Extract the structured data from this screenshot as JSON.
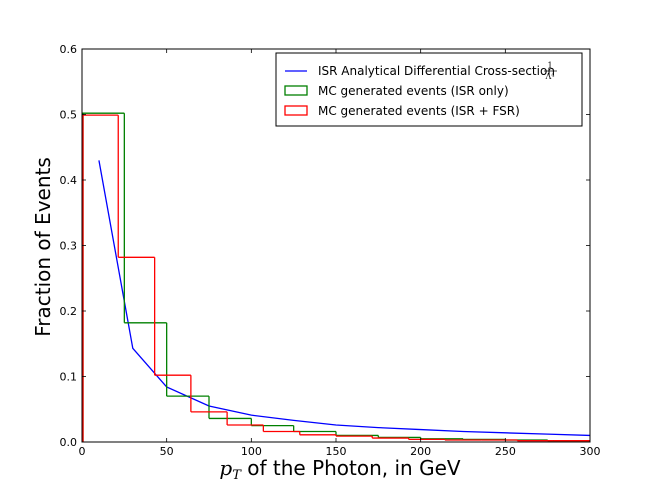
{
  "chart_data": {
    "type": "line",
    "title": "",
    "xlabel_math": "p",
    "xlabel_math_sub": "T",
    "xlabel_rest": " of the Photon, in GeV",
    "ylabel": "Fraction of Events",
    "xlim": [
      0,
      300
    ],
    "ylim": [
      0,
      0.6
    ],
    "xticks": [
      0,
      50,
      100,
      150,
      200,
      250,
      300
    ],
    "yticks": [
      0.0,
      0.1,
      0.2,
      0.3,
      0.4,
      0.5,
      0.6
    ],
    "xtick_labels": [
      "0",
      "50",
      "100",
      "150",
      "200",
      "250",
      "300"
    ],
    "ytick_labels": [
      "0.0",
      "0.1",
      "0.2",
      "0.3",
      "0.4",
      "0.5",
      "0.6"
    ],
    "grid": false,
    "legend_position": "top-right",
    "series": [
      {
        "name": "ISR Analytical Differential Cross-section",
        "legend_formula_num": "1",
        "legend_formula_den": "Λ⁴",
        "kind": "curve",
        "color": "#0000ff",
        "x": [
          10,
          30,
          50,
          75,
          100,
          125,
          150,
          175,
          200,
          225,
          250,
          275,
          300
        ],
        "y": [
          0.43,
          0.143,
          0.084,
          0.055,
          0.041,
          0.033,
          0.026,
          0.022,
          0.019,
          0.016,
          0.014,
          0.012,
          0.01
        ]
      },
      {
        "name": "MC generated events (ISR only)",
        "kind": "step",
        "color": "#008000",
        "bin_edges": [
          0,
          25,
          50,
          75,
          100,
          125,
          150,
          175,
          200,
          225,
          250,
          275,
          300
        ],
        "values": [
          0.502,
          0.182,
          0.07,
          0.036,
          0.025,
          0.016,
          0.01,
          0.007,
          0.005,
          0.004,
          0.003,
          0.002
        ]
      },
      {
        "name": "MC generated events (ISR + FSR)",
        "kind": "step",
        "color": "#ff0000",
        "bin_edges": [
          0,
          21.4,
          42.9,
          64.3,
          85.7,
          107.1,
          128.6,
          150,
          171.4,
          192.9,
          214.3,
          235.7,
          257.1,
          278.6,
          300
        ],
        "values": [
          0.499,
          0.282,
          0.102,
          0.046,
          0.026,
          0.016,
          0.011,
          0.009,
          0.006,
          0.004,
          0.003,
          0.003,
          0.002,
          0.002
        ]
      }
    ]
  }
}
